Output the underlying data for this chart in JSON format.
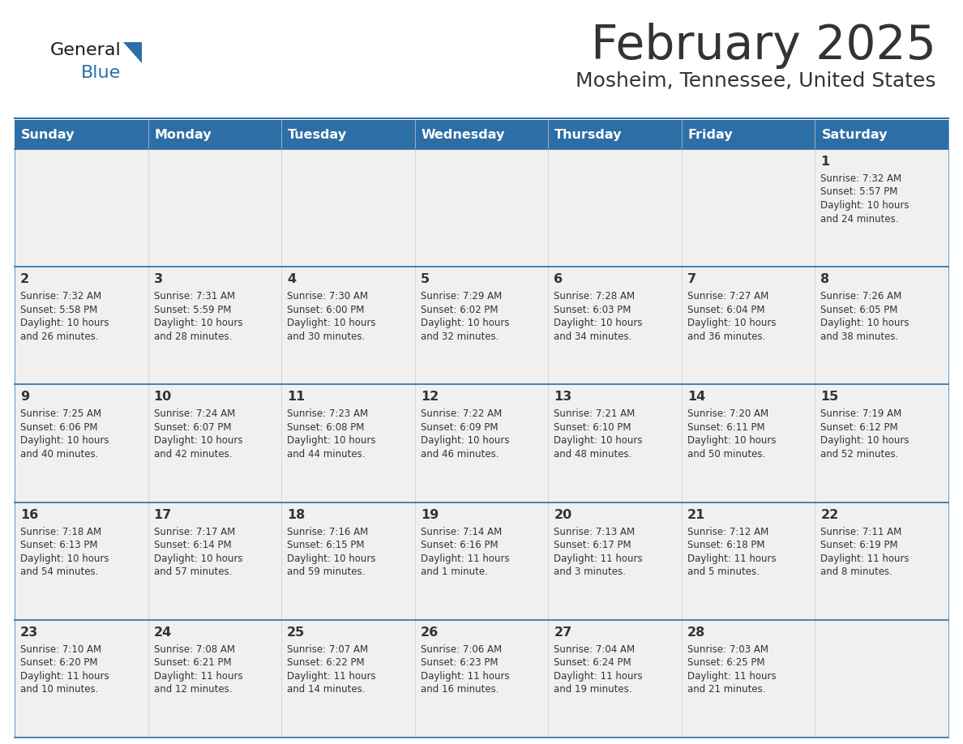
{
  "title": "February 2025",
  "subtitle": "Mosheim, Tennessee, United States",
  "header_color": "#2E6EA6",
  "header_text_color": "#FFFFFF",
  "cell_bg_light": "#F0F0F0",
  "border_color": "#2E6EA6",
  "text_color": "#333333",
  "days_of_week": [
    "Sunday",
    "Monday",
    "Tuesday",
    "Wednesday",
    "Thursday",
    "Friday",
    "Saturday"
  ],
  "calendar": [
    [
      {
        "day": "",
        "info": ""
      },
      {
        "day": "",
        "info": ""
      },
      {
        "day": "",
        "info": ""
      },
      {
        "day": "",
        "info": ""
      },
      {
        "day": "",
        "info": ""
      },
      {
        "day": "",
        "info": ""
      },
      {
        "day": "1",
        "info": "Sunrise: 7:32 AM\nSunset: 5:57 PM\nDaylight: 10 hours\nand 24 minutes."
      }
    ],
    [
      {
        "day": "2",
        "info": "Sunrise: 7:32 AM\nSunset: 5:58 PM\nDaylight: 10 hours\nand 26 minutes."
      },
      {
        "day": "3",
        "info": "Sunrise: 7:31 AM\nSunset: 5:59 PM\nDaylight: 10 hours\nand 28 minutes."
      },
      {
        "day": "4",
        "info": "Sunrise: 7:30 AM\nSunset: 6:00 PM\nDaylight: 10 hours\nand 30 minutes."
      },
      {
        "day": "5",
        "info": "Sunrise: 7:29 AM\nSunset: 6:02 PM\nDaylight: 10 hours\nand 32 minutes."
      },
      {
        "day": "6",
        "info": "Sunrise: 7:28 AM\nSunset: 6:03 PM\nDaylight: 10 hours\nand 34 minutes."
      },
      {
        "day": "7",
        "info": "Sunrise: 7:27 AM\nSunset: 6:04 PM\nDaylight: 10 hours\nand 36 minutes."
      },
      {
        "day": "8",
        "info": "Sunrise: 7:26 AM\nSunset: 6:05 PM\nDaylight: 10 hours\nand 38 minutes."
      }
    ],
    [
      {
        "day": "9",
        "info": "Sunrise: 7:25 AM\nSunset: 6:06 PM\nDaylight: 10 hours\nand 40 minutes."
      },
      {
        "day": "10",
        "info": "Sunrise: 7:24 AM\nSunset: 6:07 PM\nDaylight: 10 hours\nand 42 minutes."
      },
      {
        "day": "11",
        "info": "Sunrise: 7:23 AM\nSunset: 6:08 PM\nDaylight: 10 hours\nand 44 minutes."
      },
      {
        "day": "12",
        "info": "Sunrise: 7:22 AM\nSunset: 6:09 PM\nDaylight: 10 hours\nand 46 minutes."
      },
      {
        "day": "13",
        "info": "Sunrise: 7:21 AM\nSunset: 6:10 PM\nDaylight: 10 hours\nand 48 minutes."
      },
      {
        "day": "14",
        "info": "Sunrise: 7:20 AM\nSunset: 6:11 PM\nDaylight: 10 hours\nand 50 minutes."
      },
      {
        "day": "15",
        "info": "Sunrise: 7:19 AM\nSunset: 6:12 PM\nDaylight: 10 hours\nand 52 minutes."
      }
    ],
    [
      {
        "day": "16",
        "info": "Sunrise: 7:18 AM\nSunset: 6:13 PM\nDaylight: 10 hours\nand 54 minutes."
      },
      {
        "day": "17",
        "info": "Sunrise: 7:17 AM\nSunset: 6:14 PM\nDaylight: 10 hours\nand 57 minutes."
      },
      {
        "day": "18",
        "info": "Sunrise: 7:16 AM\nSunset: 6:15 PM\nDaylight: 10 hours\nand 59 minutes."
      },
      {
        "day": "19",
        "info": "Sunrise: 7:14 AM\nSunset: 6:16 PM\nDaylight: 11 hours\nand 1 minute."
      },
      {
        "day": "20",
        "info": "Sunrise: 7:13 AM\nSunset: 6:17 PM\nDaylight: 11 hours\nand 3 minutes."
      },
      {
        "day": "21",
        "info": "Sunrise: 7:12 AM\nSunset: 6:18 PM\nDaylight: 11 hours\nand 5 minutes."
      },
      {
        "day": "22",
        "info": "Sunrise: 7:11 AM\nSunset: 6:19 PM\nDaylight: 11 hours\nand 8 minutes."
      }
    ],
    [
      {
        "day": "23",
        "info": "Sunrise: 7:10 AM\nSunset: 6:20 PM\nDaylight: 11 hours\nand 10 minutes."
      },
      {
        "day": "24",
        "info": "Sunrise: 7:08 AM\nSunset: 6:21 PM\nDaylight: 11 hours\nand 12 minutes."
      },
      {
        "day": "25",
        "info": "Sunrise: 7:07 AM\nSunset: 6:22 PM\nDaylight: 11 hours\nand 14 minutes."
      },
      {
        "day": "26",
        "info": "Sunrise: 7:06 AM\nSunset: 6:23 PM\nDaylight: 11 hours\nand 16 minutes."
      },
      {
        "day": "27",
        "info": "Sunrise: 7:04 AM\nSunset: 6:24 PM\nDaylight: 11 hours\nand 19 minutes."
      },
      {
        "day": "28",
        "info": "Sunrise: 7:03 AM\nSunset: 6:25 PM\nDaylight: 11 hours\nand 21 minutes."
      },
      {
        "day": "",
        "info": ""
      }
    ]
  ]
}
